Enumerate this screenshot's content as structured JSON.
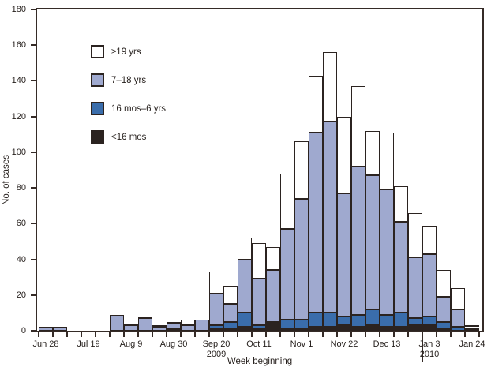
{
  "figure": {
    "ylabel": "No. of cases",
    "xlabel": "Week beginning",
    "background_color": "#ffffff",
    "axis_color": "#352b27",
    "text_color": "#241e1b",
    "bar_outline_color": "#2b2320"
  },
  "legend": [
    {
      "label": "≥19 yrs",
      "color": "#ffffff"
    },
    {
      "label": "7–18 yrs",
      "color": "#9fa9cf"
    },
    {
      "label": "16 mos–6 yrs",
      "color": "#3a6dab"
    },
    {
      "label": "<16 mos",
      "color": "#2b2320"
    }
  ],
  "chart_data": {
    "type": "bar",
    "stacked": true,
    "title": "",
    "xlabel": "Week beginning",
    "ylabel": "No. of cases",
    "ylim": [
      0,
      180
    ],
    "yticks": [
      0,
      20,
      40,
      60,
      80,
      100,
      120,
      140,
      160,
      180
    ],
    "grid": false,
    "legend_position": "upper-left-inside",
    "categories": [
      "Jun 28",
      "Jul 5",
      "Jul 12",
      "Jul 19",
      "Jul 26",
      "Aug 2",
      "Aug 9",
      "Aug 16",
      "Aug 23",
      "Aug 30",
      "Sep 6",
      "Sep 13",
      "Sep 20",
      "Sep 27",
      "Oct 4",
      "Oct 11",
      "Oct 18",
      "Oct 25",
      "Nov 1",
      "Nov 8",
      "Nov 15",
      "Nov 22",
      "Nov 29",
      "Dec 6",
      "Dec 13",
      "Dec 20",
      "Dec 27",
      "Jan 3",
      "Jan 10",
      "Jan 17",
      "Jan 24"
    ],
    "series": [
      {
        "name": "<16 mos",
        "color": "#2b2320",
        "values": [
          0,
          0,
          0,
          0,
          0,
          0,
          0,
          0,
          0,
          0,
          0,
          0,
          1,
          1,
          2,
          1,
          4,
          1,
          1,
          2,
          2,
          3,
          2,
          3,
          2,
          2,
          3,
          3,
          1,
          0,
          0
        ]
      },
      {
        "name": "16 mos–6 yrs",
        "color": "#3a6dab",
        "values": [
          0,
          0,
          0,
          0,
          0,
          0,
          0,
          0,
          0,
          1,
          0,
          0,
          2,
          4,
          8,
          2,
          1,
          5,
          5,
          8,
          8,
          5,
          7,
          9,
          7,
          8,
          4,
          5,
          4,
          2,
          1
        ]
      },
      {
        "name": "7–18 yrs",
        "color": "#9fa9cf",
        "values": [
          2,
          2,
          0,
          0,
          0,
          9,
          3,
          7,
          2,
          3,
          3,
          6,
          18,
          10,
          30,
          26,
          29,
          51,
          68,
          101,
          107,
          69,
          83,
          75,
          70,
          51,
          34,
          35,
          14,
          10,
          1
        ]
      },
      {
        "name": "≥19 yrs",
        "color": "#ffffff",
        "values": [
          0,
          0,
          0,
          0,
          0,
          0,
          1,
          1,
          1,
          1,
          3,
          0,
          12,
          10,
          12,
          20,
          13,
          31,
          32,
          32,
          39,
          43,
          45,
          25,
          32,
          20,
          25,
          16,
          15,
          12,
          1
        ]
      }
    ],
    "x_axis_labels": [
      {
        "week_index": 0,
        "label": "Jun 28"
      },
      {
        "week_index": 3,
        "label": "Jul 19"
      },
      {
        "week_index": 6,
        "label": "Aug 9"
      },
      {
        "week_index": 9,
        "label": "Aug 30"
      },
      {
        "week_index": 12,
        "label": "Sep 20",
        "year": "2009"
      },
      {
        "week_index": 15,
        "label": "Oct 11"
      },
      {
        "week_index": 18,
        "label": "Nov 1"
      },
      {
        "week_index": 21,
        "label": "Nov 22"
      },
      {
        "week_index": 24,
        "label": "Dec 13"
      },
      {
        "week_index": 27,
        "label": "Jan 3",
        "year": "2010"
      },
      {
        "week_index": 30,
        "label": "Jan 24"
      }
    ],
    "year_divider_week_index": 27
  }
}
